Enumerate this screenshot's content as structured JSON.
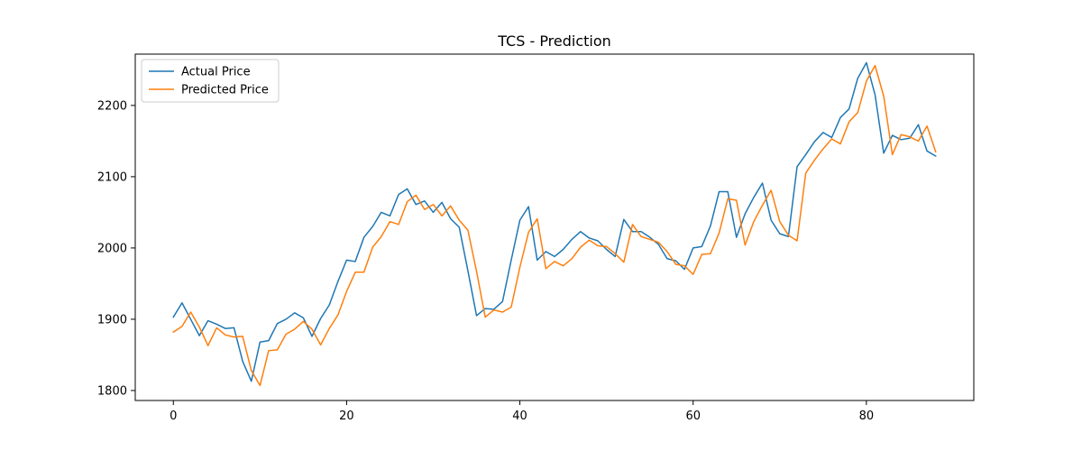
{
  "chart_data": {
    "type": "line",
    "title": "TCS - Prediction",
    "xlabel": "",
    "ylabel": "",
    "xlim": [
      -4.4,
      92.4
    ],
    "ylim": [
      1786,
      2272
    ],
    "xticks": [
      0,
      20,
      40,
      60,
      80
    ],
    "yticks": [
      1800,
      1900,
      2000,
      2100,
      2200
    ],
    "grid": false,
    "legend": "top-left",
    "x": [
      0,
      1,
      2,
      3,
      4,
      5,
      6,
      7,
      8,
      9,
      10,
      11,
      12,
      13,
      14,
      15,
      16,
      17,
      18,
      19,
      20,
      21,
      22,
      23,
      24,
      25,
      26,
      27,
      28,
      29,
      30,
      31,
      32,
      33,
      34,
      35,
      36,
      37,
      38,
      39,
      40,
      41,
      42,
      43,
      44,
      45,
      46,
      47,
      48,
      49,
      50,
      51,
      52,
      53,
      54,
      55,
      56,
      57,
      58,
      59,
      60,
      61,
      62,
      63,
      64,
      65,
      66,
      67,
      68,
      69,
      70,
      71,
      72,
      73,
      74,
      75,
      76,
      77,
      78,
      79,
      80,
      81,
      82,
      83,
      84,
      85,
      86,
      87,
      88
    ],
    "series": [
      {
        "name": "Actual Price",
        "color": "#1f77b4",
        "values": [
          1903,
          1923,
          1900,
          1877,
          1898,
          1893,
          1887,
          1888,
          1841,
          1813,
          1868,
          1870,
          1894,
          1900,
          1909,
          1902,
          1876,
          1901,
          1920,
          1953,
          1983,
          1981,
          2015,
          2030,
          2050,
          2045,
          2075,
          2083,
          2061,
          2066,
          2050,
          2064,
          2041,
          2029,
          1968,
          1905,
          1915,
          1914,
          1925,
          1983,
          2039,
          2058,
          1983,
          1995,
          1988,
          1998,
          2012,
          2023,
          2014,
          2010,
          1998,
          1988,
          2040,
          2023,
          2023,
          2015,
          2005,
          1985,
          1982,
          1970,
          2000,
          2002,
          2031,
          2079,
          2079,
          2015,
          2048,
          2071,
          2091,
          2039,
          2020,
          2016,
          2114,
          2131,
          2149,
          2162,
          2155,
          2183,
          2195,
          2238,
          2260,
          2215,
          2133,
          2158,
          2152,
          2154,
          2173,
          2136,
          2129
        ]
      },
      {
        "name": "Predicted Price",
        "color": "#ff7f0e",
        "values": [
          1882,
          1890,
          1910,
          1889,
          1863,
          1888,
          1878,
          1875,
          1876,
          1828,
          1807,
          1856,
          1857,
          1879,
          1886,
          1897,
          1886,
          1864,
          1887,
          1906,
          1939,
          1966,
          1966,
          2001,
          2016,
          2037,
          2033,
          2065,
          2074,
          2054,
          2061,
          2045,
          2059,
          2039,
          2025,
          1967,
          1903,
          1913,
          1910,
          1917,
          1973,
          2022,
          2041,
          1971,
          1981,
          1975,
          1985,
          2001,
          2011,
          2003,
          2002,
          1992,
          1980,
          2033,
          2016,
          2012,
          2008,
          1995,
          1977,
          1975,
          1963,
          1991,
          1992,
          2021,
          2069,
          2067,
          2004,
          2037,
          2060,
          2081,
          2037,
          2018,
          2010,
          2105,
          2123,
          2139,
          2153,
          2146,
          2177,
          2190,
          2234,
          2256,
          2213,
          2131,
          2159,
          2156,
          2150,
          2171,
          2135
        ]
      }
    ]
  }
}
